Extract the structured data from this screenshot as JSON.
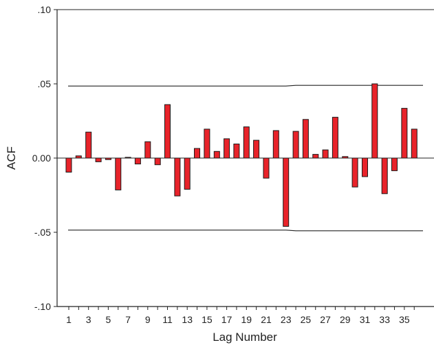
{
  "chart_data": {
    "type": "bar",
    "xlabel": "Lag Number",
    "ylabel": "ACF",
    "ylim": [
      -0.1,
      0.1
    ],
    "y_ticks": [
      {
        "value": 0.1,
        "label": ".10"
      },
      {
        "value": 0.05,
        "label": ".05"
      },
      {
        "value": 0.0,
        "label": "0.00"
      },
      {
        "value": -0.05,
        "label": "-.05"
      },
      {
        "value": -0.1,
        "label": "-.10"
      }
    ],
    "x_tick_labels": [
      "1",
      "3",
      "5",
      "7",
      "9",
      "11",
      "13",
      "15",
      "17",
      "19",
      "21",
      "23",
      "25",
      "27",
      "29",
      "31",
      "33",
      "35"
    ],
    "lags": [
      1,
      2,
      3,
      4,
      5,
      6,
      7,
      8,
      9,
      10,
      11,
      12,
      13,
      14,
      15,
      16,
      17,
      18,
      19,
      20,
      21,
      22,
      23,
      24,
      25,
      26,
      27,
      28,
      29,
      30,
      31,
      32,
      33,
      34,
      35,
      36
    ],
    "values": [
      -0.0095,
      0.0015,
      0.0175,
      -0.0025,
      -0.001,
      -0.0215,
      0.0005,
      -0.004,
      0.011,
      -0.0045,
      0.036,
      -0.0255,
      -0.021,
      0.0065,
      0.0195,
      0.0045,
      0.013,
      0.0095,
      0.021,
      0.012,
      -0.0135,
      0.0185,
      -0.046,
      0.018,
      0.026,
      0.0025,
      0.0055,
      0.0275,
      0.001,
      -0.0195,
      -0.0125,
      0.05,
      -0.024,
      -0.0085,
      0.0335,
      0.0195
    ],
    "confidence_upper": [
      0.0485,
      0.0485,
      0.0485,
      0.0485,
      0.0485,
      0.0485,
      0.0485,
      0.0485,
      0.0485,
      0.0485,
      0.0485,
      0.0485,
      0.0485,
      0.0485,
      0.0485,
      0.0485,
      0.0485,
      0.0485,
      0.0485,
      0.0485,
      0.0485,
      0.0485,
      0.0485,
      0.049,
      0.049,
      0.049,
      0.049,
      0.049,
      0.049,
      0.049,
      0.049,
      0.049,
      0.049,
      0.049,
      0.049,
      0.049
    ],
    "confidence_lower": [
      -0.0485,
      -0.0485,
      -0.0485,
      -0.0485,
      -0.0485,
      -0.0485,
      -0.0485,
      -0.0485,
      -0.0485,
      -0.0485,
      -0.0485,
      -0.0485,
      -0.0485,
      -0.0485,
      -0.0485,
      -0.0485,
      -0.0485,
      -0.0485,
      -0.0485,
      -0.0485,
      -0.0485,
      -0.0485,
      -0.0485,
      -0.049,
      -0.049,
      -0.049,
      -0.049,
      -0.049,
      -0.049,
      -0.049,
      -0.049,
      -0.049,
      -0.049,
      -0.049,
      -0.049,
      -0.049
    ],
    "bar_color": "#e8232a",
    "bar_edge_color": "#1a1a1a",
    "grid": false,
    "legend": "none"
  }
}
